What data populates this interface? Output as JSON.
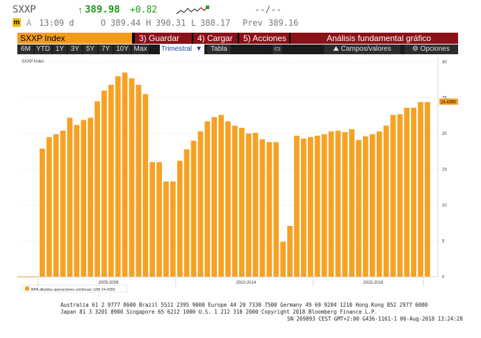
{
  "header": {
    "ticker": "SXXP",
    "arrow": "↑",
    "price": "389.98",
    "change": "+0.82",
    "bid_ask": "--/--",
    "m_badge": "m",
    "a_label": "A",
    "time": "13:09 d",
    "open_label": "O",
    "open": "389.44",
    "high_label": "H",
    "high": "390.31",
    "low_label": "L",
    "low": "388.17",
    "prev_label": "Prev",
    "prev": "389.16"
  },
  "toolbar": {
    "title": "SXXP Index",
    "save": "3) Guardar",
    "load": "4) Cargar",
    "actions": "5) Acciones",
    "panel_title": "Análisis fundamental gráfico"
  },
  "periods": [
    "6M",
    "YTD",
    "1Y",
    "3Y",
    "5Y",
    "7Y",
    "10Y",
    "Max"
  ],
  "frequency": "Trimestral",
  "table_label": "Tabla",
  "fields_label": "Campos/valores",
  "options_label": "Opciones",
  "colors": {
    "bar": "#f7a123",
    "accent": "#f39b1e",
    "red_button": "#8b1017"
  },
  "chart_data": {
    "type": "bar",
    "title": "SXXP Index",
    "legend": "BPA diluidos operaciones continuas 12M  24.4356",
    "last_value_label": "24.4356",
    "ylim": [
      0,
      30
    ],
    "y_ticks": [
      0,
      5,
      10,
      15,
      20,
      25,
      30
    ],
    "period_labels": [
      "2005-2009",
      "2010-2014",
      "2015-2019"
    ],
    "values": [
      17.9,
      19.5,
      19.9,
      20.4,
      22.2,
      21.2,
      21.9,
      22.2,
      24.5,
      26.0,
      26.8,
      28.0,
      28.5,
      27.7,
      26.8,
      25.5,
      16.0,
      16.0,
      13.3,
      13.3,
      16.2,
      17.8,
      19.0,
      20.3,
      21.7,
      22.3,
      22.6,
      21.7,
      21.1,
      20.8,
      20.0,
      20.1,
      19.2,
      18.8,
      18.8,
      4.9,
      7.1,
      19.7,
      19.3,
      19.5,
      19.7,
      19.9,
      20.3,
      20.4,
      20.2,
      20.6,
      19.1,
      19.6,
      19.9,
      20.3,
      21.1,
      22.6,
      22.7,
      23.6,
      23.6,
      24.4,
      24.4
    ]
  },
  "footer": {
    "line1": "Australia 61 2 9777 8600 Brazil 5511 2395 9000 Europe 44 20 7330 7500 Germany 49 69 9204 1210 Hong Kong 852 2977 6000",
    "line2": "Japan 81 3 3201 8900          Singapore 65 6212 1000          U.S. 1 212 318 2000                  Copyright 2018 Bloomberg Finance L.P.",
    "line3": "SN 269893 CEST GMT+2:00 G436-1161-1 06-Aug-2018 13:24:28"
  }
}
